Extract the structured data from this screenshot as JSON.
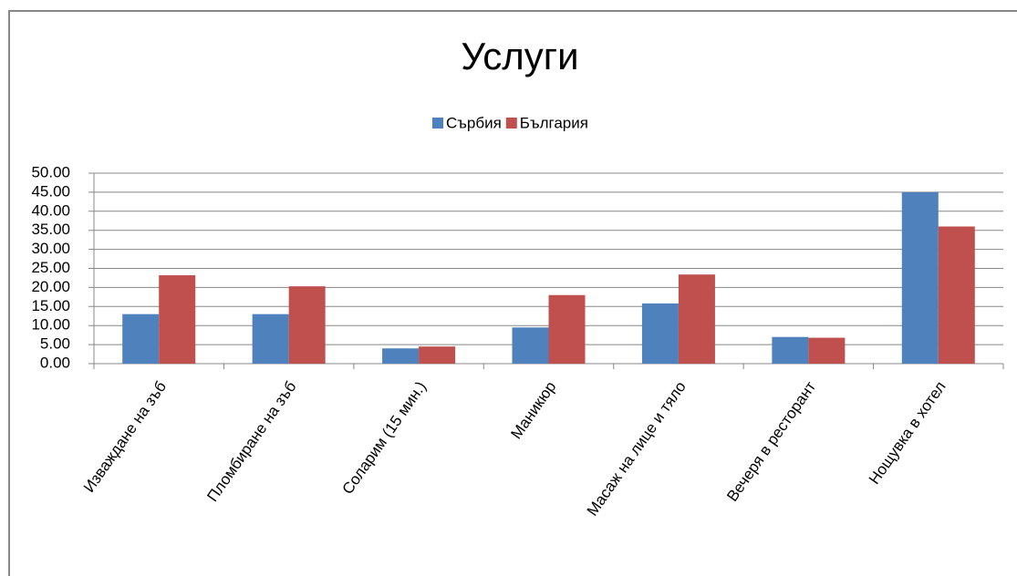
{
  "chart_data": {
    "type": "bar",
    "title": "Услуги",
    "categories": [
      "Изваждане на зъб",
      "Пломбиране на зъб",
      "Соларим (15 мин.)",
      "Маникюр",
      "Масаж на лице и тяло",
      "Вечеря в ресторант",
      "Нощувка в хотел"
    ],
    "series": [
      {
        "name": "Сърбия",
        "color": "#4f81bd",
        "values": [
          13,
          13,
          4,
          9.5,
          15.8,
          7,
          45
        ]
      },
      {
        "name": "България",
        "color": "#c0504d",
        "values": [
          23.2,
          20.3,
          4.5,
          18,
          23.4,
          6.8,
          36
        ]
      }
    ],
    "ylim": [
      0,
      50
    ],
    "yticks": [
      {
        "value": 0,
        "label": "0.00"
      },
      {
        "value": 5,
        "label": "5.00"
      },
      {
        "value": 10,
        "label": "10.00"
      },
      {
        "value": 15,
        "label": "15.00"
      },
      {
        "value": 20,
        "label": "20.00"
      },
      {
        "value": 25,
        "label": "25.00"
      },
      {
        "value": 30,
        "label": "30.00"
      },
      {
        "value": 35,
        "label": "35.00"
      },
      {
        "value": 40,
        "label": "40.00"
      },
      {
        "value": 45,
        "label": "45.00"
      },
      {
        "value": 50,
        "label": "50.00"
      }
    ],
    "grid": true,
    "legend": "top"
  }
}
